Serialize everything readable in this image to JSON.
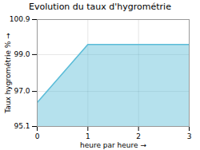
{
  "chart_data": {
    "type": "area",
    "title": "Evolution du taux d'hygrométrie",
    "xlabel": "heure par heure",
    "ylabel": "Taux hygrométrie %",
    "x": [
      0,
      1,
      3
    ],
    "values": [
      96.4,
      99.55,
      99.55
    ],
    "color": "#5bbcd8",
    "xlim": [
      0,
      3
    ],
    "xticks": [
      0,
      1,
      2,
      3
    ],
    "ylim": [
      95.1,
      100.9
    ],
    "yticks": [
      95.1,
      {
        "value": 97.0,
        "label": "97.0"
      },
      {
        "value": 99.0,
        "label": "99.0"
      },
      100.9
    ],
    "grid": true
  }
}
